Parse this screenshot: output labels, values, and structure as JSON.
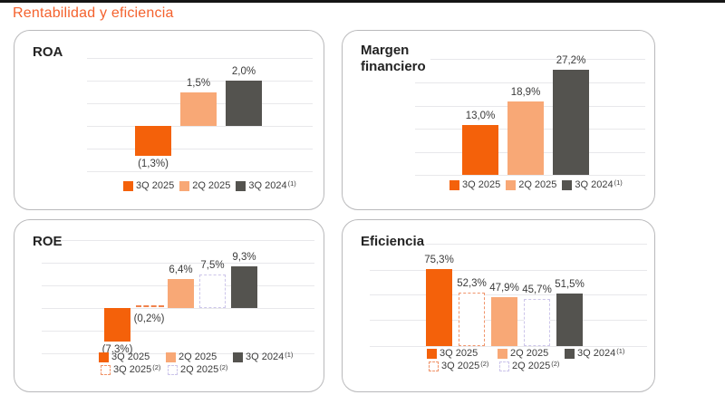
{
  "page": {
    "title": "Rentabilidad y eficiencia"
  },
  "colors": {
    "accent_orange": "#F4610A",
    "title_orange": "#F4622E",
    "solid_peach": "#F8A876",
    "solid_gray": "#54534F",
    "dashed_orange": "#F0946A",
    "dashed_lavender": "#CCC5EA",
    "grid_line": "#E8E8EB",
    "panel_border": "#B9B9BB",
    "label_text": "#3B3B3B",
    "top_bar": "#151515"
  },
  "panels": [
    {
      "id": "roa",
      "title": "ROA",
      "chart_data": {
        "type": "bar",
        "title": "ROA",
        "categories": [
          "3Q 2025",
          "2Q 2025",
          "3Q 2024 (1)"
        ],
        "values": [
          -1.3,
          1.5,
          2.0
        ],
        "value_labels": [
          "(1,3%)",
          "1,5%",
          "2,0%"
        ],
        "bar_styles": [
          "solid-orange",
          "solid-peach",
          "solid-gray"
        ],
        "unit": "%",
        "ylim": [
          -2,
          3
        ],
        "grid": true,
        "legend_position": "bottom"
      },
      "legend_rows": [
        [
          {
            "label": "3Q 2025",
            "sup": "",
            "swatch": "solid-orange"
          },
          {
            "label": "2Q 2025",
            "sup": "",
            "swatch": "solid-peach"
          },
          {
            "label": "3Q 2024",
            "sup": "(1)",
            "swatch": "solid-gray"
          }
        ]
      ]
    },
    {
      "id": "margen",
      "title": "Margen financiero",
      "chart_data": {
        "type": "bar",
        "title": "Margen financiero",
        "categories": [
          "3Q 2025",
          "2Q 2025",
          "3Q 2024 (1)"
        ],
        "values": [
          13.0,
          18.9,
          27.2
        ],
        "value_labels": [
          "13,0%",
          "18,9%",
          "27,2%"
        ],
        "bar_styles": [
          "solid-orange",
          "solid-peach",
          "solid-gray"
        ],
        "unit": "%",
        "ylim": [
          0,
          30
        ],
        "grid": true,
        "legend_position": "bottom"
      },
      "legend_rows": [
        [
          {
            "label": "3Q 2025",
            "sup": "",
            "swatch": "solid-orange"
          },
          {
            "label": "2Q 2025",
            "sup": "",
            "swatch": "solid-peach"
          },
          {
            "label": "3Q 2024",
            "sup": "(1)",
            "swatch": "solid-gray"
          }
        ]
      ]
    },
    {
      "id": "roe",
      "title": "ROE",
      "chart_data": {
        "type": "bar",
        "title": "ROE",
        "categories": [
          "3Q 2025",
          "3Q 2025 (2)",
          "2Q 2025",
          "2Q 2025 (2)",
          "3Q 2024 (1)"
        ],
        "values": [
          -7.3,
          -0.2,
          6.4,
          7.5,
          9.3
        ],
        "value_labels": [
          "(7.3%)",
          "(0,2%)",
          "6,4%",
          "7,5%",
          "9,3%"
        ],
        "bar_styles": [
          "solid-orange",
          "dashed-orange",
          "solid-peach",
          "dashed-lavender",
          "solid-gray"
        ],
        "unit": "%",
        "ylim": [
          -10,
          15
        ],
        "grid": true,
        "legend_position": "bottom"
      },
      "legend_rows": [
        [
          {
            "label": "3Q 2025",
            "sup": "",
            "swatch": "solid-orange"
          },
          {
            "label": "2Q 2025",
            "sup": "",
            "swatch": "solid-peach"
          },
          {
            "label": "3Q 2024",
            "sup": "(1)",
            "swatch": "solid-gray"
          }
        ],
        [
          {
            "label": "3Q 2025",
            "sup": "(2)",
            "swatch": "dashed-orange"
          },
          {
            "label": "2Q 2025",
            "sup": "(2)",
            "swatch": "dashed-lavender"
          }
        ]
      ]
    },
    {
      "id": "ef",
      "title": "Eficiencia",
      "chart_data": {
        "type": "bar",
        "title": "Eficiencia",
        "categories": [
          "3Q 2025",
          "3Q 2025 (2)",
          "2Q 2025",
          "2Q 2025 (2)",
          "3Q 2024 (1)"
        ],
        "values": [
          75.3,
          52.3,
          47.9,
          45.7,
          51.5
        ],
        "value_labels": [
          "75,3%",
          "52,3%",
          "47,9%",
          "45,7%",
          "51,5%"
        ],
        "bar_styles": [
          "solid-orange",
          "dashed-orange",
          "solid-peach",
          "dashed-lavender",
          "solid-gray"
        ],
        "unit": "%",
        "ylim": [
          0,
          100
        ],
        "grid": true,
        "legend_position": "bottom"
      },
      "legend_rows": [
        [
          {
            "label": "3Q 2025",
            "sup": "",
            "swatch": "solid-orange"
          },
          {
            "label": "2Q 2025",
            "sup": "",
            "swatch": "solid-peach"
          },
          {
            "label": "3Q 2024",
            "sup": "(1)",
            "swatch": "solid-gray"
          }
        ],
        [
          {
            "label": "3Q 2025",
            "sup": "(2)",
            "swatch": "dashed-orange"
          },
          {
            "label": "2Q 2025",
            "sup": "(2)",
            "swatch": "dashed-lavender"
          }
        ]
      ]
    }
  ]
}
